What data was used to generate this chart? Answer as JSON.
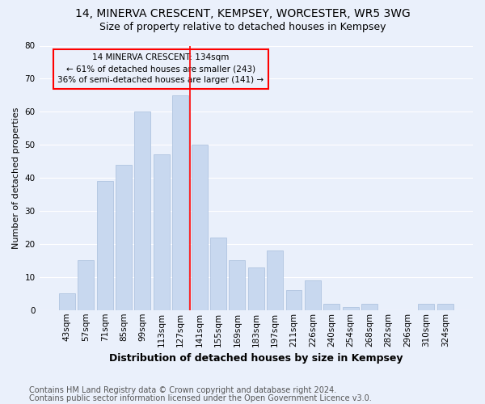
{
  "title": "14, MINERVA CRESCENT, KEMPSEY, WORCESTER, WR5 3WG",
  "subtitle": "Size of property relative to detached houses in Kempsey",
  "xlabel": "Distribution of detached houses by size in Kempsey",
  "ylabel": "Number of detached properties",
  "categories": [
    "43sqm",
    "57sqm",
    "71sqm",
    "85sqm",
    "99sqm",
    "113sqm",
    "127sqm",
    "141sqm",
    "155sqm",
    "169sqm",
    "183sqm",
    "197sqm",
    "211sqm",
    "226sqm",
    "240sqm",
    "254sqm",
    "268sqm",
    "282sqm",
    "296sqm",
    "310sqm",
    "324sqm"
  ],
  "values": [
    5,
    15,
    39,
    44,
    60,
    47,
    65,
    50,
    22,
    15,
    13,
    18,
    6,
    9,
    2,
    1,
    2,
    0,
    0,
    2,
    2
  ],
  "bar_color": "#c8d8ef",
  "bar_edge_color": "#a8bedd",
  "marker_line_index": 7,
  "annotation_lines": [
    "14 MINERVA CRESCENT: 134sqm",
    "← 61% of detached houses are smaller (243)",
    "36% of semi-detached houses are larger (141) →"
  ],
  "ylim": [
    0,
    80
  ],
  "yticks": [
    0,
    10,
    20,
    30,
    40,
    50,
    60,
    70,
    80
  ],
  "footnote1": "Contains HM Land Registry data © Crown copyright and database right 2024.",
  "footnote2": "Contains public sector information licensed under the Open Government Licence v3.0.",
  "background_color": "#eaf0fb",
  "grid_color": "#ffffff",
  "title_fontsize": 10,
  "subtitle_fontsize": 9,
  "xlabel_fontsize": 9,
  "ylabel_fontsize": 8,
  "tick_fontsize": 7.5,
  "annotation_fontsize": 7.5,
  "footnote_fontsize": 7
}
